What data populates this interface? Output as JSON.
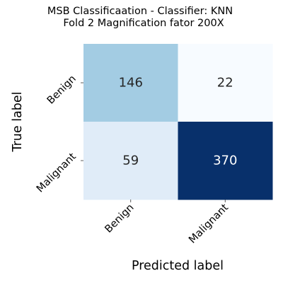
{
  "chart_data": {
    "type": "heatmap",
    "title": "MSB Classificaation - Classifier: KNN\nFold 2 Magnification fator 200X",
    "title_lines": [
      "MSB Classificaation - Classifier: KNN",
      "Fold 2 Magnification fator 200X"
    ],
    "xlabel": "Predicted label",
    "ylabel": "True label",
    "x_categories": [
      "Benign",
      "Malignant"
    ],
    "y_categories": [
      "Benign",
      "Malignant"
    ],
    "values": [
      [
        146,
        22
      ],
      [
        59,
        370
      ]
    ],
    "colormap": "Blues",
    "vmin": 22,
    "vmax": 370,
    "colorbar": false,
    "cell_colors": [
      [
        "#a3cce3",
        "#f7fbff"
      ],
      [
        "#e0ecf8",
        "#08306b"
      ]
    ],
    "text_colors": [
      [
        "#262626",
        "#262626"
      ],
      [
        "#262626",
        "#ffffff"
      ]
    ]
  }
}
